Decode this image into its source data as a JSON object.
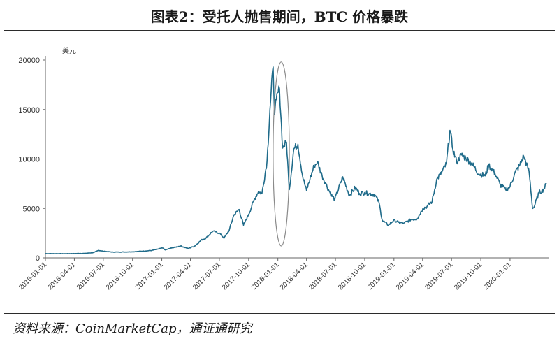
{
  "title": "图表2：受托人抛售期间，BTC 价格暴跌",
  "source": "资料来源：CoinMarketCap，通证通研究",
  "chart_data": {
    "type": "line",
    "unit_label": "美元",
    "ylim": [
      0,
      20000
    ],
    "y_ticks": [
      0,
      5000,
      10000,
      15000,
      20000
    ],
    "x_range": [
      "2016-01-01",
      "2020-05-01"
    ],
    "x_ticks": [
      "2016-01-01",
      "2016-04-01",
      "2016-07-01",
      "2016-10-01",
      "2017-01-01",
      "2017-04-01",
      "2017-07-01",
      "2017-10-01",
      "2018-01-01",
      "2018-04-01",
      "2018-07-01",
      "2018-10-01",
      "2019-01-01",
      "2019-04-01",
      "2019-07-01",
      "2019-10-01",
      "2020-01-01"
    ],
    "line_color": "#1f6b8a",
    "highlight_ellipse": {
      "from": "2017-12-17",
      "to": "2018-02-06",
      "y_min": 1200,
      "y_max": 19800
    },
    "series": [
      {
        "x": [
          "2016-01-01",
          "2016-03-01",
          "2016-05-01",
          "2016-06-01",
          "2016-06-16",
          "2016-07-01",
          "2016-08-01",
          "2016-10-01",
          "2016-12-01",
          "2017-01-04",
          "2017-01-12",
          "2017-02-01",
          "2017-03-01",
          "2017-03-25",
          "2017-04-15",
          "2017-05-05",
          "2017-05-20",
          "2017-06-10",
          "2017-07-01",
          "2017-07-16",
          "2017-08-01",
          "2017-08-15",
          "2017-09-01",
          "2017-09-15",
          "2017-10-01",
          "2017-10-20",
          "2017-11-01",
          "2017-11-12",
          "2017-11-28",
          "2017-12-07",
          "2017-12-17",
          "2017-12-22",
          "2017-12-27",
          "2018-01-06",
          "2018-01-16",
          "2018-01-28",
          "2018-02-06",
          "2018-02-20",
          "2018-03-05",
          "2018-03-20",
          "2018-04-01",
          "2018-04-12",
          "2018-04-25",
          "2018-05-05",
          "2018-05-20",
          "2018-06-01",
          "2018-06-15",
          "2018-06-29",
          "2018-07-24",
          "2018-08-14",
          "2018-09-01",
          "2018-09-15",
          "2018-10-01",
          "2018-10-15",
          "2018-11-01",
          "2018-11-15",
          "2018-11-25",
          "2018-12-15",
          "2018-12-31",
          "2019-01-15",
          "2019-02-01",
          "2019-02-25",
          "2019-03-15",
          "2019-04-02",
          "2019-04-15",
          "2019-05-01",
          "2019-05-15",
          "2019-06-01",
          "2019-06-15",
          "2019-06-26",
          "2019-07-05",
          "2019-07-17",
          "2019-08-01",
          "2019-08-15",
          "2019-09-01",
          "2019-09-25",
          "2019-10-15",
          "2019-10-26",
          "2019-11-15",
          "2019-12-01",
          "2019-12-18",
          "2020-01-01",
          "2020-01-15",
          "2020-02-01",
          "2020-02-13",
          "2020-03-01",
          "2020-03-12",
          "2020-03-16",
          "2020-04-01",
          "2020-04-15",
          "2020-04-25"
        ],
        "y": [
          430,
          420,
          450,
          530,
          760,
          670,
          580,
          610,
          750,
          1000,
          800,
          1000,
          1200,
          950,
          1200,
          1800,
          2000,
          2700,
          2500,
          2000,
          2800,
          4300,
          4900,
          3300,
          4400,
          6000,
          6700,
          6500,
          9800,
          15000,
          19300,
          14500,
          16000,
          17100,
          11100,
          11700,
          6900,
          11000,
          11500,
          8200,
          6800,
          8000,
          9300,
          9700,
          8300,
          7500,
          6500,
          5900,
          8200,
          6300,
          7100,
          6500,
          6600,
          6500,
          6400,
          5600,
          3800,
          3300,
          3800,
          3600,
          3500,
          3900,
          3950,
          5000,
          5200,
          5700,
          7900,
          8700,
          9500,
          12900,
          11000,
          9700,
          10400,
          10100,
          9600,
          8500,
          8300,
          9400,
          8500,
          7400,
          6900,
          7200,
          8500,
          9400,
          10300,
          8700,
          5000,
          5100,
          6600,
          6900,
          7500
        ]
      }
    ]
  }
}
